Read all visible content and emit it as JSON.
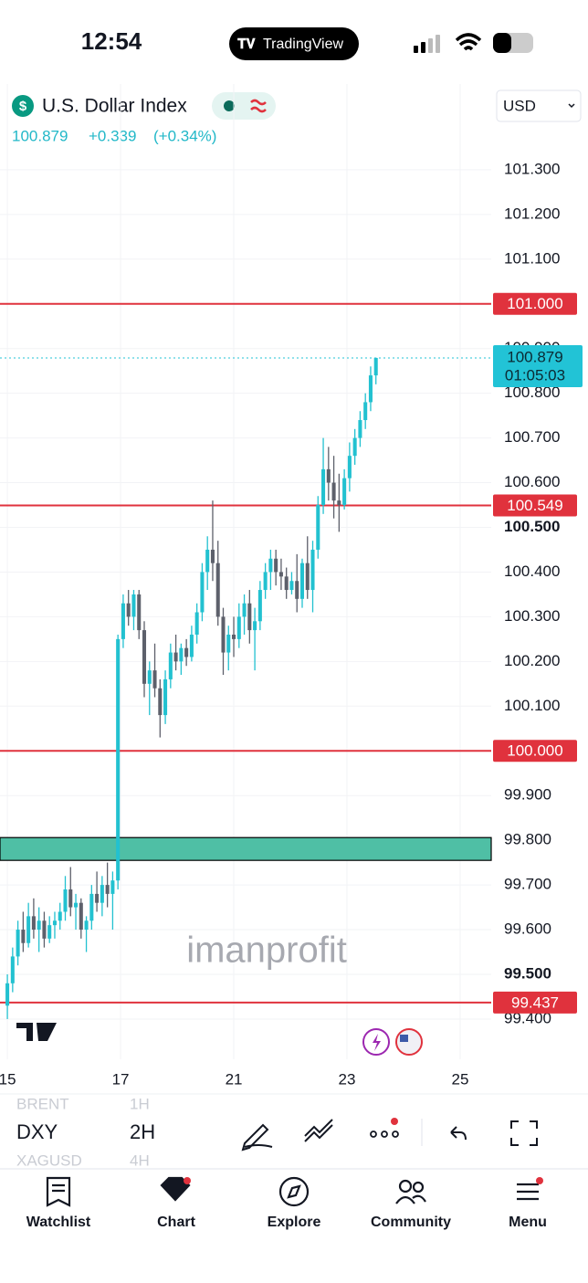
{
  "status_bar": {
    "time": "12:54",
    "app": "TradingView"
  },
  "header": {
    "symbol": "U.S. Dollar Index",
    "currency": "USD",
    "last": "100.879",
    "change": "+0.339",
    "change_pct": "(+0.34%)"
  },
  "chart_data": {
    "type": "candlestick",
    "colors": {
      "up": "#22c1d0",
      "down": "#5d606b",
      "level": "#e0323d",
      "zone": "#4fbfa5",
      "last": "#22c3d6"
    },
    "ohlc": [
      [
        99.43,
        99.5,
        99.4,
        99.48
      ],
      [
        99.48,
        99.56,
        99.46,
        99.54
      ],
      [
        99.54,
        99.62,
        99.52,
        99.6
      ],
      [
        99.6,
        99.64,
        99.55,
        99.57
      ],
      [
        99.57,
        99.66,
        99.56,
        99.63
      ],
      [
        99.63,
        99.67,
        99.58,
        99.6
      ],
      [
        99.6,
        99.65,
        99.55,
        99.62
      ],
      [
        99.62,
        99.64,
        99.56,
        99.58
      ],
      [
        99.58,
        99.63,
        99.57,
        99.61
      ],
      [
        99.61,
        99.64,
        99.58,
        99.62
      ],
      [
        99.62,
        99.66,
        99.6,
        99.64
      ],
      [
        99.64,
        99.72,
        99.62,
        99.69
      ],
      [
        99.69,
        99.74,
        99.63,
        99.65
      ],
      [
        99.65,
        99.68,
        99.6,
        99.66
      ],
      [
        99.66,
        99.67,
        99.58,
        99.6
      ],
      [
        99.6,
        99.63,
        99.55,
        99.62
      ],
      [
        99.62,
        99.7,
        99.6,
        99.68
      ],
      [
        99.68,
        99.73,
        99.64,
        99.66
      ],
      [
        99.66,
        99.72,
        99.63,
        99.7
      ],
      [
        99.7,
        99.75,
        99.65,
        99.68
      ],
      [
        99.68,
        99.73,
        99.6,
        99.71
      ],
      [
        99.71,
        100.26,
        99.69,
        100.25
      ],
      [
        100.25,
        100.35,
        100.23,
        100.33
      ],
      [
        100.33,
        100.36,
        100.28,
        100.3
      ],
      [
        100.3,
        100.36,
        100.27,
        100.35
      ],
      [
        100.35,
        100.36,
        100.25,
        100.27
      ],
      [
        100.27,
        100.29,
        100.12,
        100.15
      ],
      [
        100.15,
        100.2,
        100.08,
        100.18
      ],
      [
        100.18,
        100.24,
        100.12,
        100.14
      ],
      [
        100.14,
        100.16,
        100.03,
        100.08
      ],
      [
        100.08,
        100.18,
        100.06,
        100.16
      ],
      [
        100.16,
        100.24,
        100.14,
        100.22
      ],
      [
        100.22,
        100.26,
        100.18,
        100.2
      ],
      [
        100.2,
        100.24,
        100.17,
        100.23
      ],
      [
        100.23,
        100.25,
        100.19,
        100.21
      ],
      [
        100.21,
        100.28,
        100.2,
        100.26
      ],
      [
        100.26,
        100.33,
        100.24,
        100.31
      ],
      [
        100.31,
        100.42,
        100.29,
        100.4
      ],
      [
        100.4,
        100.48,
        100.36,
        100.45
      ],
      [
        100.45,
        100.56,
        100.38,
        100.42
      ],
      [
        100.42,
        100.47,
        100.28,
        100.3
      ],
      [
        100.3,
        100.32,
        100.17,
        100.22
      ],
      [
        100.22,
        100.28,
        100.18,
        100.26
      ],
      [
        100.26,
        100.3,
        100.21,
        100.25
      ],
      [
        100.25,
        100.33,
        100.23,
        100.3
      ],
      [
        100.3,
        100.35,
        100.26,
        100.33
      ],
      [
        100.33,
        100.36,
        100.24,
        100.27
      ],
      [
        100.27,
        100.32,
        100.18,
        100.29
      ],
      [
        100.29,
        100.38,
        100.27,
        100.36
      ],
      [
        100.36,
        100.42,
        100.34,
        100.4
      ],
      [
        100.4,
        100.45,
        100.36,
        100.43
      ],
      [
        100.43,
        100.45,
        100.37,
        100.4
      ],
      [
        100.4,
        100.43,
        100.36,
        100.39
      ],
      [
        100.39,
        100.41,
        100.34,
        100.36
      ],
      [
        100.36,
        100.4,
        100.35,
        100.38
      ],
      [
        100.38,
        100.44,
        100.31,
        100.34
      ],
      [
        100.34,
        100.43,
        100.32,
        100.42
      ],
      [
        100.42,
        100.48,
        100.34,
        100.36
      ],
      [
        100.36,
        100.47,
        100.31,
        100.45
      ],
      [
        100.45,
        100.57,
        100.43,
        100.55
      ],
      [
        100.55,
        100.7,
        100.53,
        100.63
      ],
      [
        100.63,
        100.68,
        100.56,
        100.6
      ],
      [
        100.6,
        100.66,
        100.52,
        100.56
      ],
      [
        100.56,
        100.62,
        100.49,
        100.55
      ],
      [
        100.55,
        100.63,
        100.54,
        100.61
      ],
      [
        100.61,
        100.69,
        100.58,
        100.66
      ],
      [
        100.66,
        100.72,
        100.64,
        100.7
      ],
      [
        100.7,
        100.76,
        100.68,
        100.74
      ],
      [
        100.74,
        100.8,
        100.72,
        100.78
      ],
      [
        100.78,
        100.86,
        100.76,
        100.84
      ],
      [
        100.84,
        100.88,
        100.82,
        100.879
      ]
    ],
    "ylim": [
      99.31,
      101.404
    ],
    "yticks": [
      {
        "value": 99.4,
        "label": "99.400"
      },
      {
        "value": 99.5,
        "label": "99.500"
      },
      {
        "value": 99.6,
        "label": "99.600"
      },
      {
        "value": 99.7,
        "label": "99.700"
      },
      {
        "value": 99.8,
        "label": "99.800"
      },
      {
        "value": 99.9,
        "label": "99.900"
      },
      {
        "value": 100.0,
        "label": "100.000"
      },
      {
        "value": 100.1,
        "label": "100.100"
      },
      {
        "value": 100.2,
        "label": "100.200"
      },
      {
        "value": 100.3,
        "label": "100.300"
      },
      {
        "value": 100.4,
        "label": "100.400"
      },
      {
        "value": 100.5,
        "label": "100.500"
      },
      {
        "value": 100.6,
        "label": "100.600"
      },
      {
        "value": 100.7,
        "label": "100.700"
      },
      {
        "value": 100.8,
        "label": "100.800"
      },
      {
        "value": 100.9,
        "label": "100.900"
      },
      {
        "value": 101.0,
        "label": "101.000"
      },
      {
        "value": 101.1,
        "label": "101.100"
      },
      {
        "value": 101.2,
        "label": "101.200"
      },
      {
        "value": 101.3,
        "label": "101.300"
      }
    ],
    "xlim": [
      -1.4,
      91.9
    ],
    "xticks": [
      {
        "value": 0,
        "label": "15"
      },
      {
        "value": 21.5,
        "label": "17"
      },
      {
        "value": 43,
        "label": "21"
      },
      {
        "value": 64.5,
        "label": "23"
      },
      {
        "value": 86,
        "label": "25"
      }
    ],
    "grid": true,
    "levels": [
      {
        "value": 101.0,
        "label": "101.000"
      },
      {
        "value": 100.549,
        "label": "100.549"
      },
      {
        "value": 100.0,
        "label": "100.000"
      },
      {
        "value": 99.437,
        "label": "99.437"
      }
    ],
    "zone": [
      99.755,
      99.806
    ],
    "last_price": {
      "value": 100.879,
      "label": "100.879",
      "countdown": "01:05:03"
    },
    "watermark": "imanprofit"
  },
  "toolbar": {
    "symbols": [
      "BRENT",
      "DXY",
      "XAGUSD"
    ],
    "intervals": [
      "1H",
      "2H",
      "4H"
    ]
  },
  "nav": [
    "Watchlist",
    "Chart",
    "Explore",
    "Community",
    "Menu"
  ]
}
